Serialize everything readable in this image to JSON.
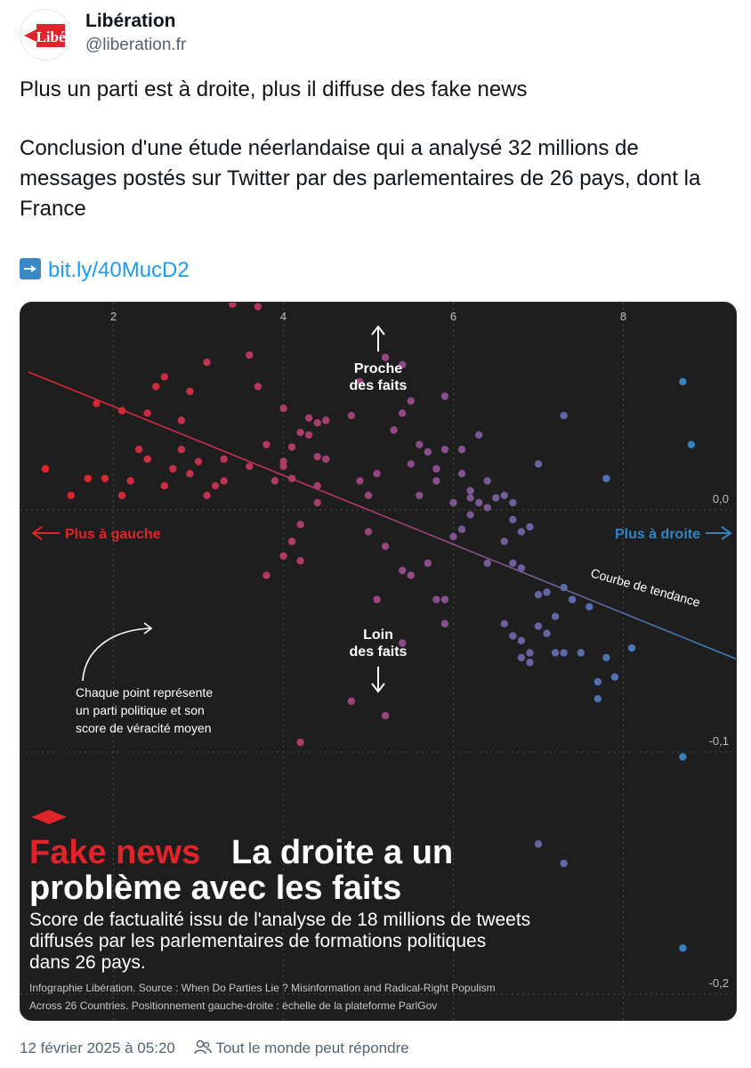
{
  "author": {
    "name": "Libération",
    "handle": "@liberation.fr",
    "logo_text": "Libé"
  },
  "tweet": {
    "headline": "Plus un parti est à droite, plus il diffuse des fake news",
    "body": "Conclusion d'une étude néerlandaise qui a analysé 32 millions de messages postés sur Twitter par des parlementaires de 26 pays, dont la France",
    "link_icon": "arrow-right-icon",
    "link_text": "bit.ly/40MucD2"
  },
  "infographic": {
    "kicker": "Fake news",
    "title_part1": "La droite a un",
    "title_part2": "problème avec les faits",
    "subtitle_line1": "Score de factualité issu de l'analyse de 18 millions de tweets",
    "subtitle_line2": "diffusés par les parlementaires de formations politiques",
    "subtitle_line3": "dans 26 pays.",
    "source_line1": "Infographie Libération. Source : When Do Parties Lie ? Misinformation and Radical-Right Populism",
    "source_line2": "Across 26 Countries. Positionnement gauche-droite : échelle de la plateforme ParlGov",
    "label_up_1": "Proche",
    "label_up_2": "des faits",
    "label_down_1": "Loin",
    "label_down_2": "des faits",
    "label_left": "Plus à gauche",
    "label_right": "Plus à droite",
    "trend_label": "Courbe de tendance",
    "note_line1": "Chaque point représente",
    "note_line2": "un parti politique et son",
    "note_line3": "score de véracité moyen",
    "colors": {
      "left": "#e0242b",
      "right": "#2f86c6",
      "background": "#1e1e1e"
    }
  },
  "chart_data": {
    "type": "scatter",
    "title": "La droite a un problème avec les faits",
    "x_ticks": [
      "2",
      "4",
      "6",
      "8"
    ],
    "y_ticks": [
      "0,0",
      "-0,1",
      "-0,2"
    ],
    "xlim": [
      1.0,
      9.5
    ],
    "ylim": [
      -0.22,
      0.11
    ],
    "grid": true,
    "trend_line": {
      "x": [
        1.0,
        9.5
      ],
      "y": [
        0.057,
        -0.064
      ]
    },
    "points": [
      [
        1.2,
        0.017
      ],
      [
        1.5,
        0.006
      ],
      [
        1.7,
        0.013
      ],
      [
        2.1,
        0.041
      ],
      [
        2.2,
        0.012
      ],
      [
        2.1,
        0.006
      ],
      [
        2.4,
        0.04
      ],
      [
        2.5,
        0.051
      ],
      [
        2.4,
        0.021
      ],
      [
        2.6,
        0.01
      ],
      [
        2.7,
        0.017
      ],
      [
        2.8,
        0.037
      ],
      [
        2.9,
        0.049
      ],
      [
        2.8,
        0.025
      ],
      [
        2.9,
        0.015
      ],
      [
        3.0,
        0.02
      ],
      [
        2.6,
        0.099
      ],
      [
        3.1,
        0.006
      ],
      [
        3.2,
        0.01
      ],
      [
        3.3,
        0.021
      ],
      [
        3.6,
        0.064
      ],
      [
        3.7,
        0.084
      ],
      [
        3.7,
        0.051
      ],
      [
        3.8,
        0.027
      ],
      [
        3.6,
        0.018
      ],
      [
        2.6,
        0.055
      ],
      [
        1.9,
        0.013
      ],
      [
        2.3,
        0.025
      ],
      [
        3.4,
        0.085
      ],
      [
        3.3,
        0.012
      ],
      [
        3.9,
        0.012
      ],
      [
        4.0,
        0.042
      ],
      [
        4.1,
        0.026
      ],
      [
        4.2,
        0.032
      ],
      [
        4.3,
        0.038
      ],
      [
        4.4,
        0.036
      ],
      [
        4.4,
        0.01
      ],
      [
        4.5,
        0.021
      ],
      [
        4.5,
        0.037
      ],
      [
        4.3,
        0.031
      ],
      [
        4.1,
        0.013
      ],
      [
        4.0,
        0.018
      ],
      [
        4.2,
        -0.006
      ],
      [
        4.4,
        0.022
      ],
      [
        4.0,
        -0.019
      ],
      [
        4.1,
        -0.013
      ],
      [
        4.2,
        -0.021
      ],
      [
        3.8,
        -0.027
      ],
      [
        4.0,
        0.02
      ],
      [
        4.8,
        0.039
      ],
      [
        4.9,
        0.012
      ],
      [
        5.1,
        0.015
      ],
      [
        5.2,
        0.063
      ],
      [
        5.0,
        0.006
      ],
      [
        4.9,
        0.053
      ],
      [
        5.3,
        0.033
      ],
      [
        5.4,
        0.06
      ],
      [
        5.5,
        0.045
      ],
      [
        5.6,
        0.027
      ],
      [
        5.5,
        0.019
      ],
      [
        5.7,
        0.024
      ],
      [
        5.8,
        0.012
      ],
      [
        5.4,
        0.04
      ],
      [
        5.6,
        0.006
      ],
      [
        5.9,
        0.025
      ],
      [
        5.6,
        0.099
      ],
      [
        5.9,
        0.047
      ],
      [
        5.0,
        -0.009
      ],
      [
        5.2,
        -0.015
      ],
      [
        5.4,
        -0.025
      ],
      [
        5.5,
        -0.027
      ],
      [
        5.7,
        -0.022
      ],
      [
        5.8,
        -0.037
      ],
      [
        5.9,
        -0.037
      ],
      [
        5.9,
        -0.047
      ],
      [
        6.0,
        -0.011
      ],
      [
        6.1,
        -0.008
      ],
      [
        6.1,
        0.015
      ],
      [
        6.2,
        0.008
      ],
      [
        6.2,
        0.005
      ],
      [
        6.1,
        0.025
      ],
      [
        6.2,
        -0.002
      ],
      [
        6.3,
        0.003
      ],
      [
        6.0,
        0.003
      ],
      [
        6.3,
        0.031
      ],
      [
        6.4,
        0.001
      ],
      [
        6.4,
        0.012
      ],
      [
        6.5,
        0.005
      ],
      [
        6.6,
        0.006
      ],
      [
        6.6,
        -0.013
      ],
      [
        6.7,
        -0.022
      ],
      [
        6.7,
        0.003
      ],
      [
        6.7,
        -0.004
      ],
      [
        6.8,
        -0.009
      ],
      [
        6.8,
        -0.024
      ],
      [
        6.9,
        -0.007
      ],
      [
        7.0,
        -0.035
      ],
      [
        7.1,
        -0.034
      ],
      [
        7.3,
        -0.032
      ],
      [
        7.4,
        -0.037
      ],
      [
        7.6,
        -0.04
      ],
      [
        7.1,
        -0.051
      ],
      [
        6.9,
        -0.059
      ],
      [
        6.8,
        -0.054
      ],
      [
        7.2,
        -0.059
      ],
      [
        7.3,
        -0.059
      ],
      [
        6.4,
        -0.022
      ],
      [
        6.6,
        -0.047
      ],
      [
        6.7,
        -0.052
      ],
      [
        6.8,
        -0.061
      ],
      [
        6.9,
        -0.063
      ],
      [
        7.0,
        -0.048
      ],
      [
        7.2,
        -0.044
      ],
      [
        7.5,
        -0.059
      ],
      [
        7.8,
        -0.061
      ],
      [
        7.7,
        -0.078
      ],
      [
        7.7,
        -0.071
      ],
      [
        7.9,
        -0.069
      ],
      [
        7.3,
        0.039
      ],
      [
        7.8,
        0.013
      ],
      [
        8.8,
        0.027
      ],
      [
        8.7,
        0.053
      ],
      [
        8.1,
        -0.057
      ],
      [
        9.5,
        -0.077
      ],
      [
        8.7,
        -0.102
      ],
      [
        7.0,
        -0.138
      ],
      [
        7.3,
        -0.146
      ],
      [
        8.7,
        -0.181
      ],
      [
        5.8,
        0.017
      ],
      [
        5.1,
        -0.037
      ],
      [
        4.2,
        -0.096
      ],
      [
        4.8,
        -0.079
      ],
      [
        7.0,
        0.019
      ],
      [
        3.1,
        0.061
      ],
      [
        1.8,
        0.044
      ],
      [
        4.4,
        0.003
      ],
      [
        5.2,
        -0.085
      ],
      [
        5.4,
        -0.055
      ]
    ]
  },
  "meta": {
    "timestamp": "12 février 2025 à 05:20",
    "reply_icon": "people-icon",
    "reply_setting": "Tout le monde peut répondre"
  }
}
